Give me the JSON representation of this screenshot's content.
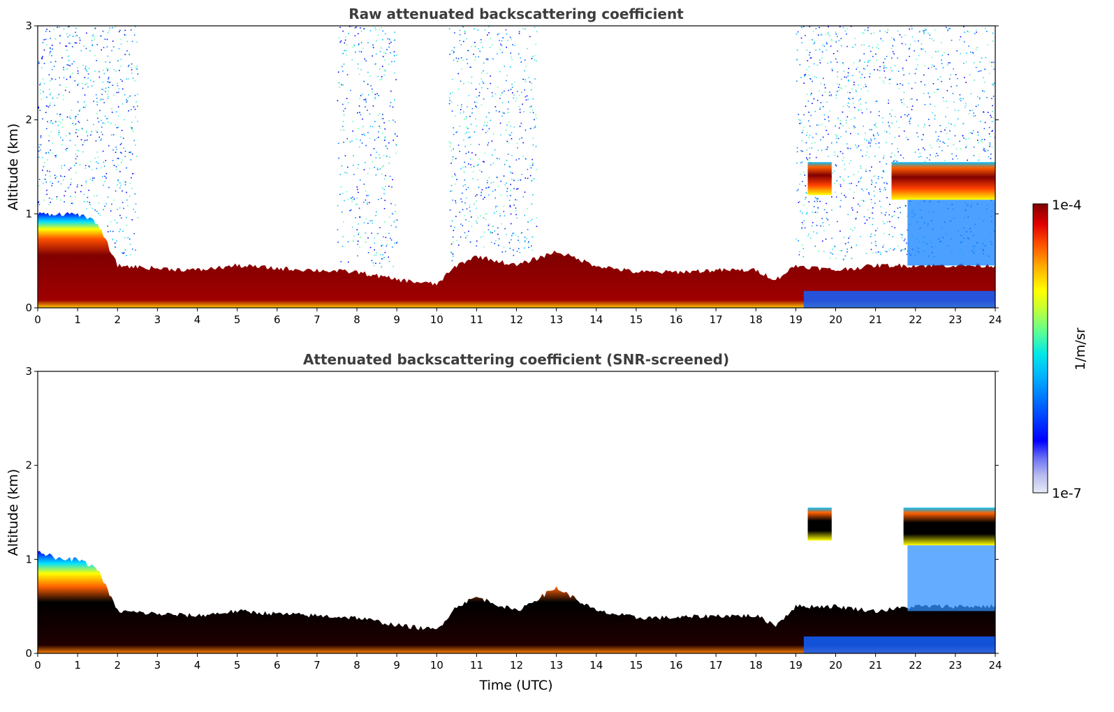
{
  "chart_data": [
    {
      "type": "heatmap",
      "title": "Raw attenuated backscattering coefficient",
      "xlabel": "",
      "ylabel": "Altitude (km)",
      "xlim": [
        0,
        24
      ],
      "ylim": [
        0,
        3
      ],
      "xticks": [
        0,
        1,
        2,
        3,
        4,
        5,
        6,
        7,
        8,
        9,
        10,
        11,
        12,
        13,
        14,
        15,
        16,
        17,
        18,
        19,
        20,
        21,
        22,
        23,
        24
      ],
      "yticks": [
        0,
        1,
        2,
        3
      ],
      "colormap": "jet-like",
      "color_scale": "log",
      "layers": {
        "boundary_layer_top_km": [
          [
            0,
            1.0
          ],
          [
            0.5,
            1.0
          ],
          [
            1,
            1.0
          ],
          [
            1.5,
            0.9
          ],
          [
            2,
            0.45
          ],
          [
            3,
            0.42
          ],
          [
            4,
            0.4
          ],
          [
            5,
            0.45
          ],
          [
            6,
            0.42
          ],
          [
            7,
            0.4
          ],
          [
            8,
            0.38
          ],
          [
            9,
            0.3
          ],
          [
            10,
            0.25
          ],
          [
            10.5,
            0.45
          ],
          [
            11,
            0.55
          ],
          [
            12,
            0.45
          ],
          [
            13,
            0.6
          ],
          [
            14,
            0.45
          ],
          [
            15,
            0.38
          ],
          [
            16,
            0.38
          ],
          [
            17,
            0.4
          ],
          [
            18,
            0.4
          ],
          [
            18.5,
            0.3
          ],
          [
            19,
            0.45
          ],
          [
            20,
            0.4
          ],
          [
            21,
            0.45
          ],
          [
            22,
            0.45
          ],
          [
            23,
            0.45
          ],
          [
            24,
            0.45
          ]
        ],
        "elevated_cloud_layer": [
          {
            "x_start": 19.3,
            "x_end": 19.9,
            "bottom_km": 1.2,
            "top_km": 1.55
          },
          {
            "x_start": 21.4,
            "x_end": 24.0,
            "bottom_km": 1.15,
            "top_km": 1.55
          }
        ],
        "noise_regions_x": [
          [
            0,
            2.5
          ],
          [
            7.5,
            9
          ],
          [
            10.3,
            12.5
          ],
          [
            19,
            24
          ]
        ]
      }
    },
    {
      "type": "heatmap",
      "title": "Attenuated backscattering coefficient (SNR-screened)",
      "xlabel": "Time (UTC)",
      "ylabel": "Altitude (km)",
      "xlim": [
        0,
        24
      ],
      "ylim": [
        0,
        3
      ],
      "xticks": [
        0,
        1,
        2,
        3,
        4,
        5,
        6,
        7,
        8,
        9,
        10,
        11,
        12,
        13,
        14,
        15,
        16,
        17,
        18,
        19,
        20,
        21,
        22,
        23,
        24
      ],
      "yticks": [
        0,
        1,
        2,
        3
      ],
      "colormap": "jet-like",
      "color_scale": "log",
      "layers": {
        "boundary_layer_top_km": [
          [
            0,
            1.1
          ],
          [
            0.5,
            1.0
          ],
          [
            1,
            1.0
          ],
          [
            1.5,
            0.9
          ],
          [
            2,
            0.45
          ],
          [
            3,
            0.42
          ],
          [
            4,
            0.4
          ],
          [
            5,
            0.45
          ],
          [
            6,
            0.42
          ],
          [
            7,
            0.4
          ],
          [
            8,
            0.38
          ],
          [
            9,
            0.3
          ],
          [
            10,
            0.25
          ],
          [
            10.5,
            0.5
          ],
          [
            11,
            0.6
          ],
          [
            12,
            0.45
          ],
          [
            13,
            0.7
          ],
          [
            14,
            0.45
          ],
          [
            15,
            0.38
          ],
          [
            16,
            0.38
          ],
          [
            17,
            0.4
          ],
          [
            18,
            0.4
          ],
          [
            18.5,
            0.3
          ],
          [
            19,
            0.5
          ],
          [
            20,
            0.5
          ],
          [
            21,
            0.45
          ],
          [
            22,
            0.5
          ],
          [
            23,
            0.5
          ],
          [
            24,
            0.5
          ]
        ],
        "elevated_cloud_layer": [
          {
            "x_start": 19.3,
            "x_end": 19.9,
            "bottom_km": 1.2,
            "top_km": 1.55
          },
          {
            "x_start": 21.7,
            "x_end": 24.0,
            "bottom_km": 1.15,
            "top_km": 1.55
          }
        ]
      }
    }
  ],
  "colorbar": {
    "label": "1/m/sr",
    "max_label": "1e-4",
    "min_label": "1e-7",
    "range": [
      1e-07,
      0.0001
    ],
    "scale": "log",
    "colors": [
      "#e8eaf6",
      "#b8bcf0",
      "#8a8ff0",
      "#0000ff",
      "#0050ff",
      "#00a0ff",
      "#00e0ff",
      "#40ffc0",
      "#a0ff60",
      "#ffff00",
      "#ffc000",
      "#ff7000",
      "#ff2000",
      "#c00000",
      "#800000"
    ]
  }
}
